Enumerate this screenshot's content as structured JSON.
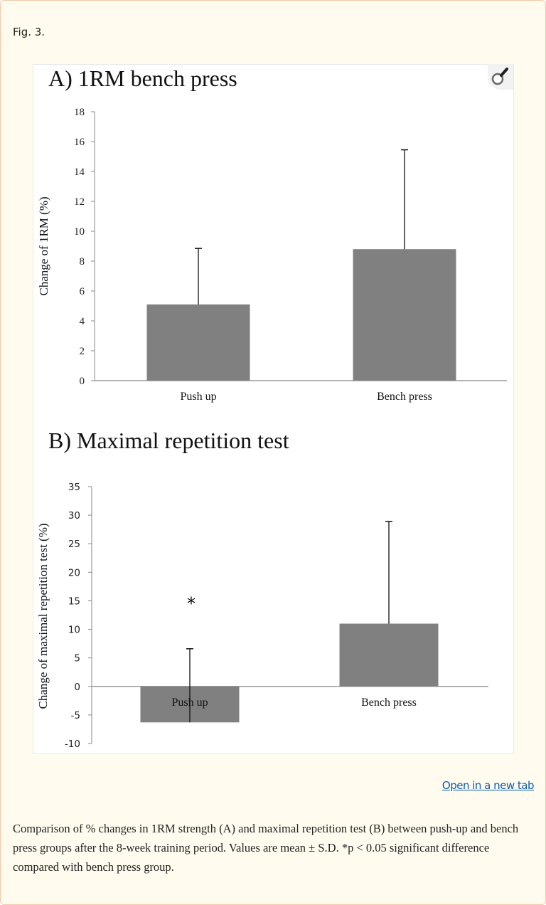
{
  "figure_label": "Fig. 3.",
  "open_link": "Open in a new tab",
  "caption": "Comparison of % changes in 1RM strength (A) and maximal repetition test (B) between push-up and bench press groups after the 8-week training period. Values are mean ± S.D. *p < 0.05 significant difference compared with bench press group.",
  "icons": {
    "zoom": "magnifier-icon"
  },
  "colors": {
    "bar": "#808080",
    "axis": "#888888",
    "link": "#0b5db0"
  },
  "chart_data": [
    {
      "type": "bar",
      "title": "A) 1RM bench press",
      "xlabel": "",
      "ylabel": "Change of 1RM (%)",
      "categories": [
        "Push up",
        "Bench press"
      ],
      "values": [
        5.1,
        8.8
      ],
      "error_sd": [
        3.75,
        6.65
      ],
      "ylim": [
        0,
        18
      ],
      "yticks": [
        0,
        2,
        4,
        6,
        8,
        10,
        12,
        14,
        16,
        18
      ],
      "grid": false
    },
    {
      "type": "bar",
      "title": "B) Maximal repetition test",
      "xlabel": "",
      "ylabel": "Change of maximal repetition test (%)",
      "categories": [
        "Push up",
        "Bench press"
      ],
      "values": [
        -6.3,
        11.0
      ],
      "error_sd": [
        12.9,
        17.9
      ],
      "ylim": [
        -10,
        35
      ],
      "yticks": [
        -10,
        -5,
        0,
        5,
        10,
        15,
        20,
        25,
        30,
        35
      ],
      "annotations": [
        {
          "text": "*",
          "category": "Push up",
          "y": 15
        }
      ],
      "grid": false
    }
  ]
}
